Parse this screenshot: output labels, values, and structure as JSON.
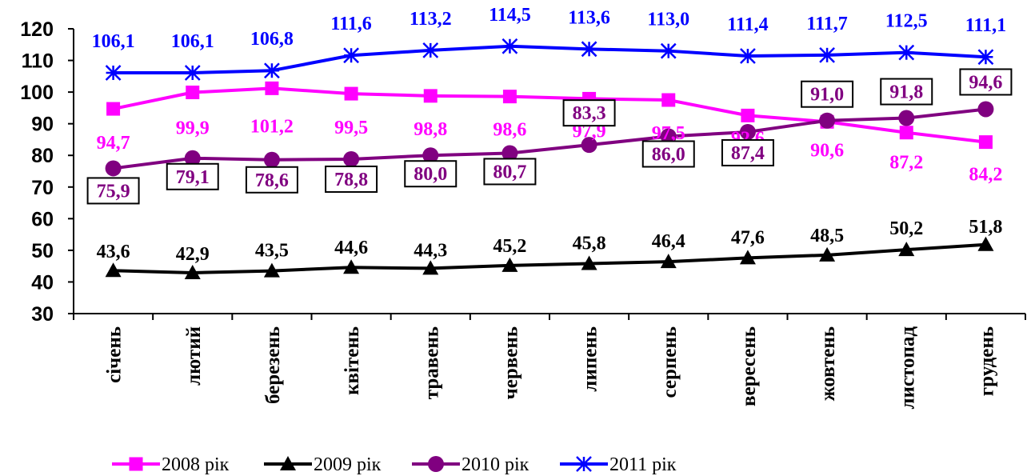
{
  "chart_data": {
    "type": "line",
    "title": "",
    "xlabel": "",
    "ylabel": "",
    "ylim": [
      30,
      120
    ],
    "y_ticks": [
      "30",
      "40",
      "50",
      "60",
      "70",
      "80",
      "90",
      "100",
      "110",
      "120"
    ],
    "categories": [
      "січень",
      "лютий",
      "березень",
      "квітень",
      "травень",
      "червень",
      "липень",
      "серпень",
      "вересень",
      "жовтень",
      "листопад",
      "грудень"
    ],
    "grid": false,
    "legend_position": "bottom",
    "series": [
      {
        "name": "2008 рік",
        "color": "#ff00ff",
        "marker": "square",
        "label_style": "plain",
        "values": [
          94.7,
          99.9,
          101.2,
          99.5,
          98.8,
          98.6,
          97.9,
          97.5,
          92.6,
          90.6,
          87.2,
          84.2
        ],
        "labels": [
          "94,7",
          "99,9",
          "101,2",
          "99,5",
          "98,8",
          "98,6",
          "97,9",
          "97,5",
          "92,6",
          "90,6",
          "87,2",
          "84,2"
        ]
      },
      {
        "name": "2009 рік",
        "color": "#000000",
        "marker": "triangle",
        "label_style": "plain",
        "values": [
          43.6,
          42.9,
          43.5,
          44.6,
          44.3,
          45.2,
          45.8,
          46.4,
          47.6,
          48.5,
          50.2,
          51.8
        ],
        "labels": [
          "43,6",
          "42,9",
          "43,5",
          "44,6",
          "44,3",
          "45,2",
          "45,8",
          "46,4",
          "47,6",
          "48,5",
          "50,2",
          "51,8"
        ]
      },
      {
        "name": "2010 рік",
        "color": "#800080",
        "marker": "circle",
        "label_style": "boxed",
        "values": [
          75.9,
          79.1,
          78.6,
          78.8,
          80.0,
          80.7,
          83.3,
          86.0,
          87.4,
          91.0,
          91.8,
          94.6
        ],
        "labels": [
          "75,9",
          "79,1",
          "78,6",
          "78,8",
          "80,0",
          "80,7",
          "83,3",
          "86,0",
          "87,4",
          "91,0",
          "91,8",
          "94,6"
        ]
      },
      {
        "name": "2011 рік",
        "color": "#0000ff",
        "marker": "star",
        "label_style": "plain",
        "values": [
          106.1,
          106.1,
          106.8,
          111.6,
          113.2,
          114.5,
          113.6,
          113.0,
          111.4,
          111.7,
          112.5,
          111.1
        ],
        "labels": [
          "106,1",
          "106,1",
          "106,8",
          "111,6",
          "113,2",
          "114,5",
          "113,6",
          "113,0",
          "111,4",
          "111,7",
          "112,5",
          "111,1"
        ]
      }
    ]
  }
}
